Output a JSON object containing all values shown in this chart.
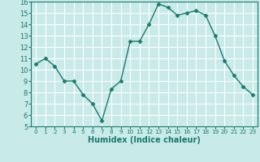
{
  "x": [
    0,
    1,
    2,
    3,
    4,
    5,
    6,
    7,
    8,
    9,
    10,
    11,
    12,
    13,
    14,
    15,
    16,
    17,
    18,
    19,
    20,
    21,
    22,
    23
  ],
  "y": [
    10.5,
    11.0,
    10.3,
    9.0,
    9.0,
    7.8,
    7.0,
    5.5,
    8.3,
    9.0,
    12.5,
    12.5,
    14.0,
    15.8,
    15.5,
    14.8,
    15.0,
    15.2,
    14.8,
    13.0,
    10.8,
    9.5,
    8.5,
    7.8
  ],
  "line_color": "#1a7a6e",
  "marker": "D",
  "marker_size": 2.5,
  "bg_color": "#c8eae8",
  "grid_color": "#ffffff",
  "xlabel": "Humidex (Indice chaleur)",
  "xlabel_fontsize": 7,
  "tick_fontsize": 6,
  "ylim": [
    5,
    16
  ],
  "xlim": [
    -0.5,
    23.5
  ],
  "yticks": [
    5,
    6,
    7,
    8,
    9,
    10,
    11,
    12,
    13,
    14,
    15,
    16
  ],
  "xticks": [
    0,
    1,
    2,
    3,
    4,
    5,
    6,
    7,
    8,
    9,
    10,
    11,
    12,
    13,
    14,
    15,
    16,
    17,
    18,
    19,
    20,
    21,
    22,
    23
  ]
}
